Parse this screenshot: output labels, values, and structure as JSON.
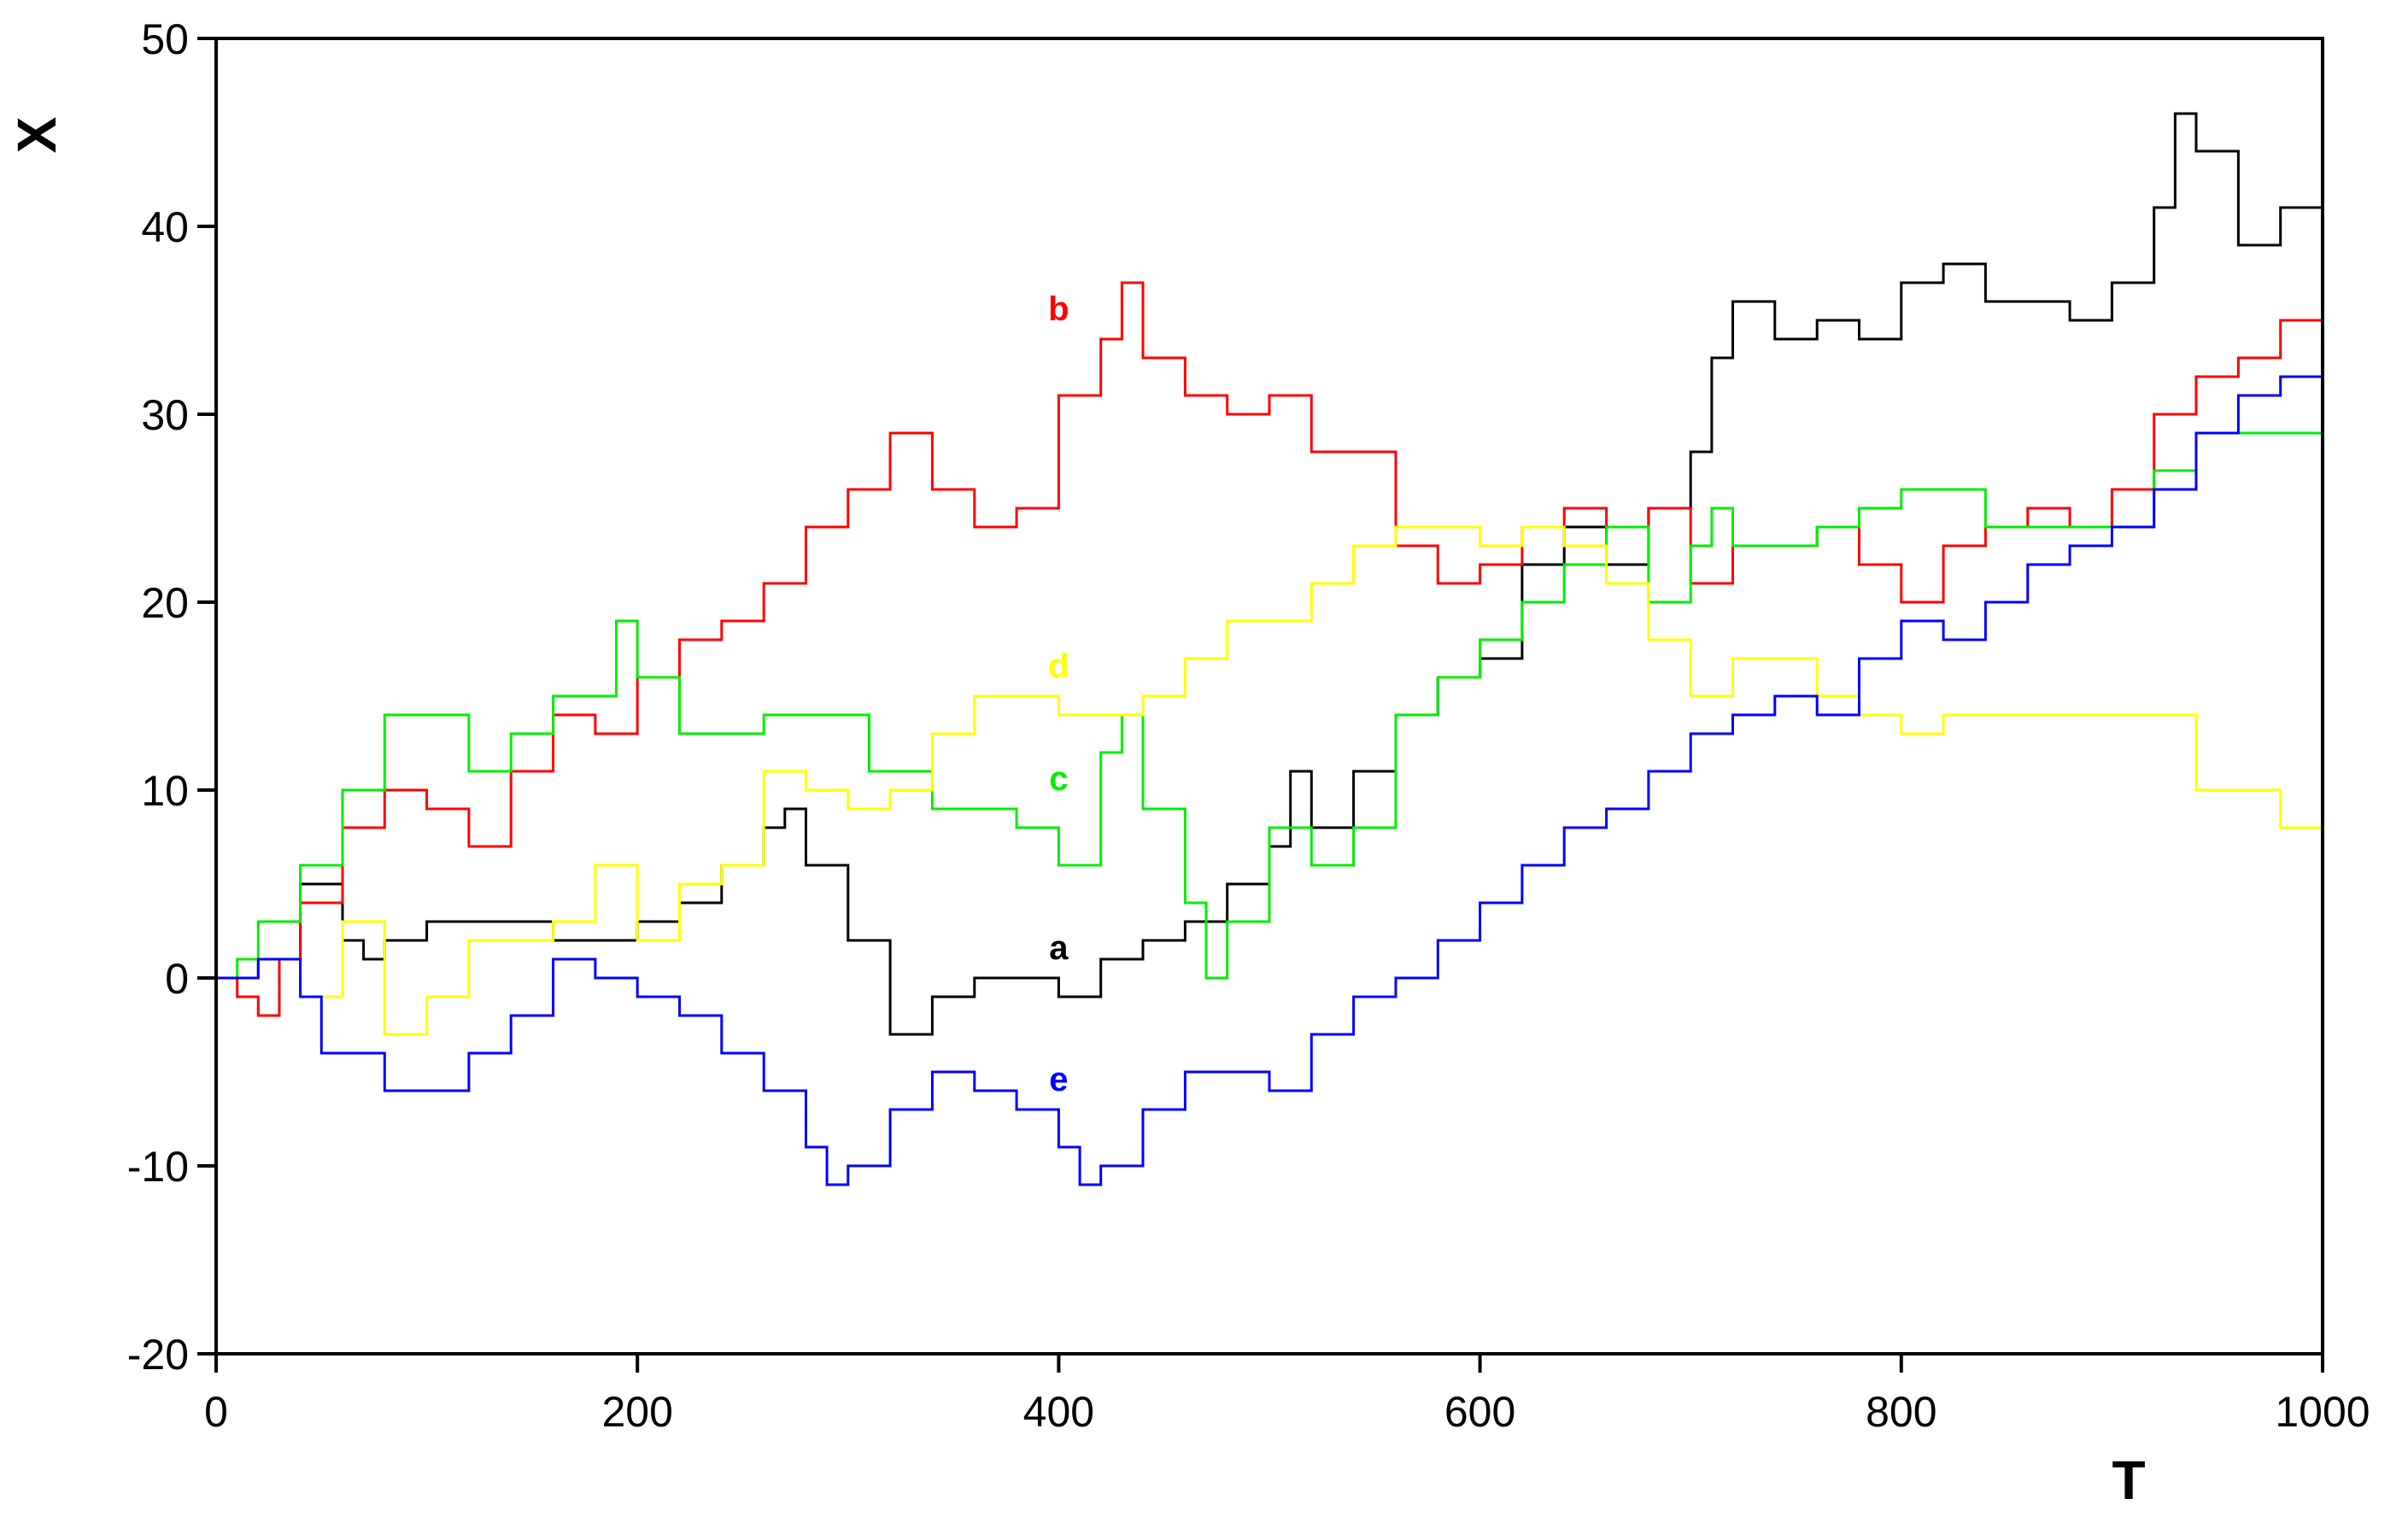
{
  "chart_data": {
    "type": "line",
    "xlabel": "T",
    "ylabel": "X",
    "xlim": [
      0,
      1000
    ],
    "ylim": [
      -20,
      50
    ],
    "xticks": [
      0,
      200,
      400,
      600,
      800,
      1000
    ],
    "yticks": [
      -20,
      -10,
      0,
      10,
      20,
      30,
      40,
      50
    ],
    "grid": false,
    "legend": "none",
    "series": [
      {
        "name": "a",
        "color": "#000000",
        "label_at": [
          400,
          1
        ],
        "x": [
          0,
          20,
          40,
          60,
          70,
          80,
          100,
          120,
          140,
          160,
          180,
          200,
          220,
          240,
          260,
          270,
          280,
          300,
          320,
          340,
          360,
          380,
          400,
          420,
          440,
          460,
          480,
          500,
          510,
          520,
          540,
          560,
          580,
          600,
          620,
          640,
          660,
          680,
          700,
          710,
          720,
          740,
          760,
          780,
          800,
          820,
          840,
          860,
          880,
          900,
          920,
          930,
          940,
          960,
          980,
          1000
        ],
        "y": [
          0,
          1,
          5,
          2,
          1,
          2,
          3,
          3,
          3,
          2,
          2,
          3,
          4,
          6,
          8,
          9,
          6,
          2,
          -3,
          -1,
          0,
          0,
          -1,
          1,
          2,
          3,
          5,
          7,
          11,
          8,
          11,
          14,
          16,
          17,
          22,
          24,
          22,
          25,
          28,
          33,
          36,
          34,
          35,
          34,
          37,
          38,
          36,
          36,
          35,
          37,
          41,
          46,
          44,
          39,
          41,
          41
        ]
      },
      {
        "name": "b",
        "color": "#ff0000",
        "label_at": [
          400,
          35
        ],
        "x": [
          0,
          10,
          20,
          30,
          40,
          60,
          80,
          100,
          120,
          140,
          160,
          180,
          200,
          220,
          240,
          260,
          280,
          300,
          320,
          340,
          360,
          380,
          400,
          420,
          430,
          440,
          460,
          480,
          500,
          520,
          540,
          560,
          580,
          600,
          620,
          640,
          660,
          680,
          700,
          720,
          740,
          760,
          780,
          800,
          820,
          840,
          860,
          880,
          900,
          920,
          940,
          960,
          980,
          1000
        ],
        "y": [
          0,
          -1,
          -2,
          1,
          4,
          8,
          10,
          9,
          7,
          11,
          14,
          13,
          16,
          18,
          19,
          21,
          24,
          26,
          29,
          26,
          24,
          25,
          31,
          34,
          37,
          33,
          31,
          30,
          31,
          28,
          28,
          23,
          21,
          22,
          24,
          25,
          24,
          25,
          21,
          23,
          23,
          24,
          22,
          20,
          23,
          24,
          25,
          24,
          26,
          30,
          32,
          33,
          35,
          40
        ]
      },
      {
        "name": "c",
        "color": "#00ee00",
        "label_at": [
          400,
          10
        ],
        "x": [
          0,
          10,
          20,
          40,
          60,
          80,
          100,
          120,
          140,
          160,
          180,
          190,
          200,
          220,
          240,
          260,
          280,
          300,
          310,
          320,
          340,
          360,
          380,
          400,
          420,
          430,
          440,
          460,
          470,
          480,
          500,
          520,
          540,
          560,
          580,
          600,
          620,
          640,
          660,
          680,
          700,
          710,
          720,
          740,
          760,
          780,
          800,
          820,
          840,
          860,
          880,
          900,
          920,
          940,
          960,
          980,
          1000
        ],
        "y": [
          0,
          1,
          3,
          6,
          10,
          14,
          14,
          11,
          13,
          15,
          15,
          19,
          16,
          13,
          13,
          14,
          14,
          14,
          11,
          11,
          9,
          9,
          8,
          6,
          12,
          14,
          9,
          4,
          0,
          3,
          8,
          6,
          8,
          14,
          16,
          18,
          20,
          22,
          24,
          20,
          23,
          25,
          23,
          23,
          24,
          25,
          26,
          26,
          24,
          24,
          24,
          24,
          27,
          29,
          29,
          29,
          30
        ]
      },
      {
        "name": "d",
        "color": "#ffff00",
        "label_at": [
          400,
          16
        ],
        "x": [
          0,
          20,
          40,
          60,
          80,
          100,
          120,
          140,
          160,
          180,
          200,
          220,
          240,
          260,
          280,
          300,
          320,
          340,
          360,
          380,
          400,
          420,
          440,
          460,
          480,
          500,
          520,
          540,
          560,
          580,
          600,
          620,
          640,
          660,
          680,
          700,
          720,
          740,
          760,
          780,
          800,
          820,
          840,
          860,
          880,
          900,
          920,
          940,
          960,
          980,
          1000
        ],
        "y": [
          0,
          1,
          -1,
          3,
          -3,
          -1,
          2,
          2,
          3,
          6,
          2,
          5,
          6,
          11,
          10,
          9,
          10,
          13,
          15,
          15,
          14,
          14,
          15,
          17,
          19,
          19,
          21,
          23,
          24,
          24,
          23,
          24,
          23,
          21,
          18,
          15,
          17,
          17,
          15,
          14,
          13,
          14,
          14,
          14,
          14,
          14,
          14,
          10,
          10,
          8,
          10
        ]
      },
      {
        "name": "e",
        "color": "#0000ff",
        "label_at": [
          400,
          -6
        ],
        "x": [
          0,
          20,
          40,
          50,
          60,
          80,
          100,
          120,
          140,
          160,
          180,
          200,
          220,
          240,
          260,
          280,
          290,
          300,
          320,
          340,
          360,
          380,
          400,
          410,
          420,
          440,
          460,
          480,
          500,
          520,
          540,
          560,
          580,
          600,
          620,
          640,
          660,
          680,
          700,
          720,
          740,
          760,
          780,
          800,
          820,
          840,
          860,
          880,
          900,
          920,
          940,
          960,
          980,
          1000
        ],
        "y": [
          0,
          1,
          -1,
          -4,
          -4,
          -6,
          -6,
          -4,
          -2,
          1,
          0,
          -1,
          -2,
          -4,
          -6,
          -9,
          -11,
          -10,
          -7,
          -5,
          -6,
          -7,
          -9,
          -11,
          -10,
          -7,
          -5,
          -5,
          -6,
          -3,
          -1,
          0,
          2,
          4,
          6,
          8,
          9,
          11,
          13,
          14,
          15,
          14,
          17,
          19,
          18,
          20,
          22,
          23,
          24,
          26,
          29,
          31,
          32,
          30
        ]
      }
    ]
  }
}
